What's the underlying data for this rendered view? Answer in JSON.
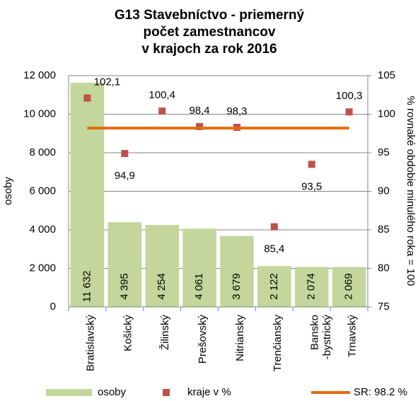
{
  "chart_data": {
    "type": "bar",
    "title": [
      "G13 Stavebníctvo - priemerný",
      "počet zamestnancov",
      "v krajoch za rok 2016"
    ],
    "y_label": "osoby",
    "y2_label": "% rovnaké obdobie minulého roka = 100",
    "categories": [
      "Bratislavský",
      "Košický",
      "Žilinský",
      "Prešovský",
      "Nitriansky",
      "Trenčiansky",
      "Bansko\n-bystrický",
      "Trnavský"
    ],
    "series": [
      {
        "name": "osoby",
        "type": "bar",
        "color": "#c3d69b",
        "values": [
          11632,
          4395,
          4254,
          4061,
          3679,
          2122,
          2074,
          2069
        ],
        "value_labels": [
          "11 632",
          "4 395",
          "4 254",
          "4 061",
          "3 679",
          "2 122",
          "2 074",
          "2 069"
        ]
      },
      {
        "name": "kraje v %",
        "type": "scatter",
        "axis": "y2",
        "color": "#c0504d",
        "values": [
          102.1,
          94.9,
          100.4,
          98.4,
          98.3,
          85.4,
          93.5,
          100.3
        ],
        "value_labels": [
          "102,1",
          "94,9",
          "100,4",
          "98,4",
          "98,3",
          "85,4",
          "93,5",
          "100,3"
        ]
      },
      {
        "name": "SR: 98.2 %",
        "type": "hline",
        "axis": "y2",
        "color": "#e46c0a",
        "value": 98.2
      }
    ],
    "ylim": [
      0,
      12000
    ],
    "yticks": [
      0,
      {
        "value": 2000,
        "label": "2 000"
      },
      {
        "value": 4000,
        "label": "4 000"
      },
      {
        "value": 6000,
        "label": "6 000"
      },
      {
        "value": 8000,
        "label": "8 000"
      },
      {
        "value": 10000,
        "label": "10 000"
      },
      {
        "value": 12000,
        "label": "12 000"
      }
    ],
    "y2lim": [
      75,
      105
    ],
    "y2ticks": [
      75,
      80,
      85,
      90,
      95,
      100,
      105
    ],
    "grid": true,
    "legend": "bottom"
  }
}
